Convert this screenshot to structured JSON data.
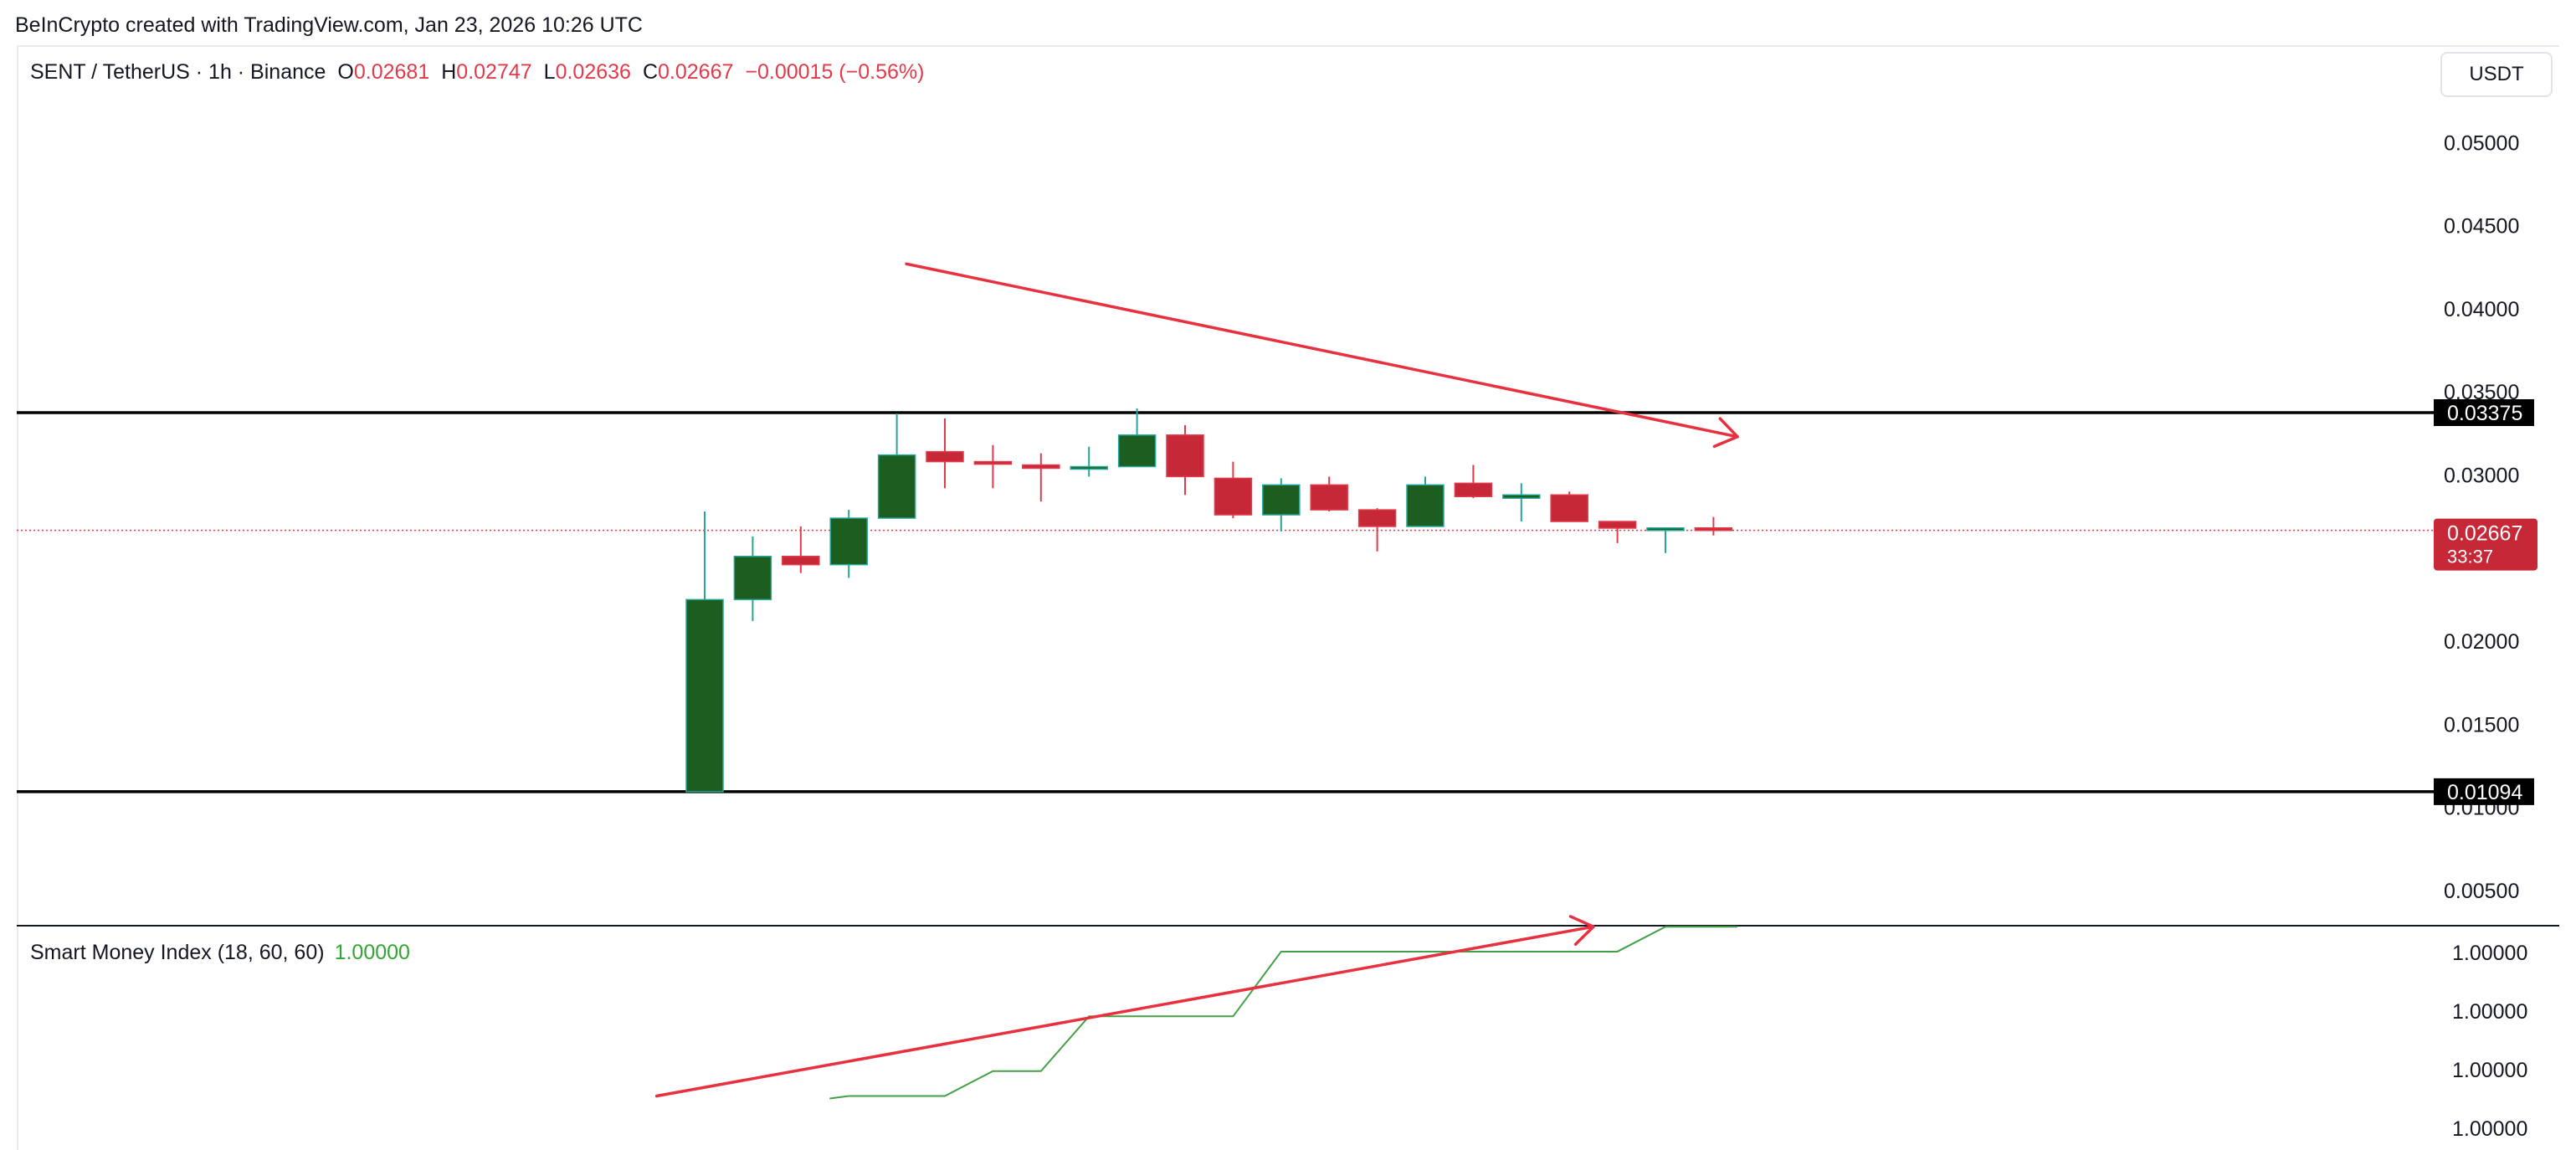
{
  "credit": "BeInCrypto created with TradingView.com, Jan 23, 2026 10:26 UTC",
  "symbol": {
    "pair": "SENT / TetherUS · 1h · Binance",
    "o_label": "O",
    "o": "0.02681",
    "h_label": "H",
    "h": "0.02747",
    "l_label": "L",
    "l": "0.02636",
    "c_label": "C",
    "c": "0.02667",
    "change": "−0.00015 (−0.56%)"
  },
  "currency_button": "USDT",
  "indicator": {
    "name": "Smart Money Index (18, 60, 60)",
    "value": "1.00000"
  },
  "colors": {
    "up": "#1b5e20",
    "up_edge": "#26a69a",
    "down": "#c62838",
    "down_edge": "#e03a4b",
    "smi": "#43a047",
    "arrow": "#e8303f"
  },
  "chart_data": [
    {
      "type": "candlestick",
      "title": "SENT / TetherUS · 1h · Binance",
      "y_ticks": [
        "0.05000",
        "0.04500",
        "0.04000",
        "0.03500",
        "0.03000",
        "0.02000",
        "0.01500",
        "0.01000",
        "0.00500"
      ],
      "ylim": [
        0.0,
        0.052
      ],
      "candles": [
        {
          "o": 0.01094,
          "h": 0.0278,
          "l": 0.01094,
          "c": 0.0225
        },
        {
          "o": 0.0225,
          "h": 0.0263,
          "l": 0.0212,
          "c": 0.0251
        },
        {
          "o": 0.0251,
          "h": 0.0269,
          "l": 0.0241,
          "c": 0.0246
        },
        {
          "o": 0.0246,
          "h": 0.0279,
          "l": 0.0238,
          "c": 0.0274
        },
        {
          "o": 0.0274,
          "h": 0.0337,
          "l": 0.0274,
          "c": 0.0312
        },
        {
          "o": 0.0314,
          "h": 0.0334,
          "l": 0.0292,
          "c": 0.0308
        },
        {
          "o": 0.0308,
          "h": 0.0318,
          "l": 0.0292,
          "c": 0.0307
        },
        {
          "o": 0.0306,
          "h": 0.0313,
          "l": 0.0284,
          "c": 0.0304
        },
        {
          "o": 0.0304,
          "h": 0.0317,
          "l": 0.0299,
          "c": 0.0305
        },
        {
          "o": 0.0305,
          "h": 0.034,
          "l": 0.0305,
          "c": 0.0324
        },
        {
          "o": 0.0324,
          "h": 0.033,
          "l": 0.0288,
          "c": 0.0299
        },
        {
          "o": 0.0298,
          "h": 0.0308,
          "l": 0.0274,
          "c": 0.0276
        },
        {
          "o": 0.0276,
          "h": 0.0298,
          "l": 0.0266,
          "c": 0.0294
        },
        {
          "o": 0.0294,
          "h": 0.0299,
          "l": 0.0278,
          "c": 0.0279
        },
        {
          "o": 0.0279,
          "h": 0.028,
          "l": 0.0254,
          "c": 0.0269
        },
        {
          "o": 0.0269,
          "h": 0.0299,
          "l": 0.0269,
          "c": 0.0294
        },
        {
          "o": 0.0295,
          "h": 0.0306,
          "l": 0.0286,
          "c": 0.0287
        },
        {
          "o": 0.0286,
          "h": 0.0295,
          "l": 0.0272,
          "c": 0.0288
        },
        {
          "o": 0.0288,
          "h": 0.029,
          "l": 0.0272,
          "c": 0.0272
        },
        {
          "o": 0.0272,
          "h": 0.0272,
          "l": 0.0259,
          "c": 0.0268
        },
        {
          "o": 0.0267,
          "h": 0.0268,
          "l": 0.0253,
          "c": 0.02681
        },
        {
          "o": 0.02681,
          "h": 0.02747,
          "l": 0.02636,
          "c": 0.02667
        }
      ],
      "levels": [
        {
          "value": 0.03375,
          "label": "0.03375"
        },
        {
          "value": 0.01094,
          "label": "0.01094"
        }
      ],
      "last_price": {
        "value": 0.02667,
        "label": "0.02667",
        "countdown": "33:37"
      },
      "trend_arrow": {
        "direction": "down",
        "from": [
          4.2,
          0.0427
        ],
        "to": [
          21.5,
          0.0323
        ]
      }
    },
    {
      "type": "line",
      "title": "Smart Money Index (18, 60, 60)",
      "y_ticks": [
        "1.00000",
        "1.00000",
        "1.00000",
        "1.00000"
      ],
      "series": [
        {
          "name": "Smart Money Index (18, 60, 60)",
          "x": [
            2.6,
            3,
            5,
            6,
            7,
            8,
            9,
            10,
            11,
            12,
            13,
            14,
            15,
            16,
            17,
            18,
            19,
            20,
            21.5
          ],
          "values": [
            0.95,
            1.0,
            1.0,
            1.5,
            1.5,
            2.6,
            2.6,
            2.6,
            2.6,
            3.9,
            3.9,
            3.9,
            3.9,
            3.9,
            3.9,
            3.9,
            3.9,
            4.4,
            4.4
          ]
        }
      ],
      "trend_arrow": {
        "direction": "up",
        "from": [
          -1.0,
          1.0
        ],
        "to": [
          18.5,
          4.4
        ]
      }
    }
  ]
}
